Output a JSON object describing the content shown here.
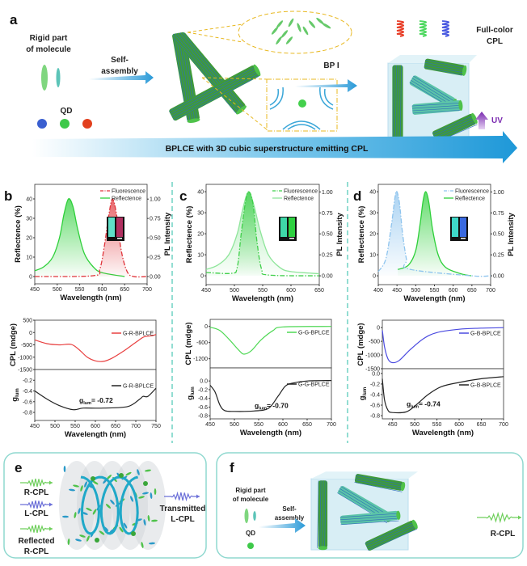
{
  "panel_a": {
    "label": "a",
    "rigid_line1": "Rigid part",
    "rigid_line2": "of molecule",
    "self_line1": "Self-",
    "self_line2": "assembly",
    "qd": "QD",
    "bp": "BP I",
    "fullcolor_line1": "Full-color",
    "fullcolor_line2": "CPL",
    "uv": "UV",
    "banner": "BPLCE  with 3D  cubic superstructure emitting CPL",
    "qd_colors": [
      "#3a5fd0",
      "#3ec94a",
      "#e2401e"
    ],
    "helix_colors": [
      "#e8402a",
      "#4ed860",
      "#4a5ae0"
    ]
  },
  "panel_labels": {
    "b": "b",
    "c": "c",
    "d": "d"
  },
  "panel_e": {
    "label": "e",
    "r_cpl": "R-CPL",
    "l_cpl": "L-CPL",
    "reflected_line1": "Reflected",
    "reflected_line2": "R-CPL",
    "transmitted_line1": "Transmitted",
    "transmitted_line2": "L-CPL"
  },
  "panel_f": {
    "label": "f",
    "rigid_line1": "Rigid part",
    "rigid_line2": "of molecule",
    "self_line1": "Self-",
    "self_line2": "assembly",
    "qd": "QD",
    "r_cpl": "R-CPL"
  },
  "chart_data": [
    {
      "id": "b-spectra",
      "type": "line",
      "xlabel": "Wavelength (nm)",
      "ylabel": "Reflectence (%)",
      "y2label": "PL Intensity",
      "xlim": [
        450,
        700
      ],
      "ylim": [
        -3.75,
        47.5
      ],
      "y2lim": [
        -0.094,
        1.19
      ],
      "xticks": [
        450,
        500,
        550,
        600,
        650,
        700
      ],
      "yticks": [
        0,
        10,
        20,
        30,
        40
      ],
      "y2ticks": [
        "0.00",
        "0.25",
        "0.50",
        "0.75",
        "1.00"
      ],
      "legend": "top-right",
      "series": [
        {
          "name": "Fluorescence",
          "axis": "right",
          "style": "dashdot",
          "color": "#e0343a",
          "points": [
            [
              450,
              0
            ],
            [
              580,
              0.01
            ],
            [
              595,
              0.1
            ],
            [
              605,
              0.4
            ],
            [
              615,
              0.8
            ],
            [
              623,
              1.0
            ],
            [
              632,
              0.8
            ],
            [
              642,
              0.35
            ],
            [
              655,
              0.07
            ],
            [
              670,
              0
            ],
            [
              700,
              0
            ]
          ]
        },
        {
          "name": "Reflectence",
          "axis": "left",
          "style": "solid",
          "color": "#2ed03a",
          "points": [
            [
              450,
              3
            ],
            [
              470,
              5
            ],
            [
              490,
              10
            ],
            [
              505,
              20
            ],
            [
              515,
              32
            ],
            [
              525,
              40
            ],
            [
              535,
              36
            ],
            [
              545,
              25
            ],
            [
              560,
              12
            ],
            [
              580,
              5
            ],
            [
              600,
              2
            ],
            [
              650,
              0
            ]
          ]
        }
      ]
    },
    {
      "id": "b-cpl",
      "type": "line",
      "xlabel": "Wavelength (nm)",
      "ylabel": "CPL (mdge)",
      "y2label": "glum",
      "xlim": [
        450,
        750
      ],
      "xticks": [
        450,
        500,
        550,
        600,
        650,
        700,
        750
      ],
      "top": {
        "ylim": [
          -1500,
          500
        ],
        "yticks": [
          500,
          0,
          -500,
          -1000,
          -1500
        ],
        "series": [
          {
            "name": "G-R-BPLCE",
            "color": "#e84040",
            "points": [
              [
                450,
                -300
              ],
              [
                480,
                -450
              ],
              [
                510,
                -500
              ],
              [
                540,
                -480
              ],
              [
                560,
                -700
              ],
              [
                580,
                -1000
              ],
              [
                600,
                -1150
              ],
              [
                620,
                -1170
              ],
              [
                640,
                -1050
              ],
              [
                670,
                -750
              ],
              [
                700,
                -400
              ],
              [
                720,
                -180
              ],
              [
                740,
                -130
              ],
              [
                750,
                -80
              ]
            ]
          }
        ]
      },
      "bottom": {
        "ylim": [
          -0.95,
          0
        ],
        "yticks": [
          -0.2,
          -0.4,
          -0.6,
          -0.8
        ],
        "annotation": "= -0.72",
        "series": [
          {
            "name": "G-R-BPLCE",
            "color": "#222222",
            "points": [
              [
                450,
                -0.4
              ],
              [
                480,
                -0.55
              ],
              [
                510,
                -0.67
              ],
              [
                545,
                -0.75
              ],
              [
                570,
                -0.72
              ],
              [
                620,
                -0.72
              ],
              [
                680,
                -0.69
              ],
              [
                710,
                -0.55
              ],
              [
                718,
                -0.5
              ],
              [
                730,
                -0.5
              ],
              [
                750,
                -0.35
              ]
            ]
          }
        ]
      }
    },
    {
      "id": "c-spectra",
      "type": "line",
      "xlabel": "Wavelength (nm)",
      "ylabel": "Reflectence (%)",
      "y2label": "PL Intensity",
      "xlim": [
        450,
        650
      ],
      "ylim": [
        -4.2,
        43.5
      ],
      "y2lim": [
        -0.105,
        1.09
      ],
      "xticks": [
        450,
        500,
        550,
        600,
        650
      ],
      "yticks": [
        0,
        10,
        20,
        30,
        40
      ],
      "y2ticks": [
        "0.00",
        "0.25",
        "0.50",
        "0.75",
        "1.00"
      ],
      "legend": "top-right",
      "series": [
        {
          "name": "Fluorescence",
          "axis": "right",
          "style": "dashdot",
          "color": "#3fcf4a",
          "points": [
            [
              450,
              0.04
            ],
            [
              495,
              0.03
            ],
            [
              505,
              0.1
            ],
            [
              512,
              0.5
            ],
            [
              520,
              0.9
            ],
            [
              526,
              1.0
            ],
            [
              533,
              0.85
            ],
            [
              540,
              0.4
            ],
            [
              548,
              0.08
            ],
            [
              560,
              0.01
            ],
            [
              650,
              0
            ]
          ]
        },
        {
          "name": "Reflectence",
          "axis": "left",
          "style": "solid",
          "color": "#8ee59a",
          "points": [
            [
              450,
              3
            ],
            [
              470,
              5
            ],
            [
              490,
              10
            ],
            [
              505,
              20
            ],
            [
              515,
              32
            ],
            [
              525,
              40
            ],
            [
              535,
              33
            ],
            [
              545,
              22
            ],
            [
              560,
              10
            ],
            [
              580,
              4
            ],
            [
              600,
              2
            ],
            [
              650,
              1
            ]
          ]
        }
      ]
    },
    {
      "id": "c-cpl",
      "type": "line",
      "xlabel": "Wavelength (nm)",
      "ylabel": "CPL (mdge)",
      "y2label": "glum",
      "xlim": [
        450,
        700
      ],
      "xticks": [
        450,
        500,
        550,
        600,
        650,
        700
      ],
      "top": {
        "ylim": [
          -1540,
          260
        ],
        "yticks": [
          0,
          -600,
          -1200
        ],
        "series": [
          {
            "name": "G-G-BPLCE",
            "color": "#4ed854",
            "points": [
              [
                450,
                -30
              ],
              [
                470,
                -150
              ],
              [
                490,
                -500
              ],
              [
                510,
                -900
              ],
              [
                520,
                -1030
              ],
              [
                535,
                -900
              ],
              [
                555,
                -500
              ],
              [
                580,
                -150
              ],
              [
                600,
                -20
              ],
              [
                700,
                0
              ]
            ]
          }
        ]
      },
      "bottom": {
        "ylim": [
          -0.87,
          0.3
        ],
        "yticks": [
          0.0,
          -0.2,
          -0.4,
          -0.6,
          -0.8
        ],
        "annotation": "= -0.70",
        "series": [
          {
            "name": "G-G-BPLCE",
            "color": "#222222",
            "points": [
              [
                450,
                -0.1
              ],
              [
                460,
                -0.25
              ],
              [
                470,
                -0.55
              ],
              [
                480,
                -0.68
              ],
              [
                500,
                -0.7
              ],
              [
                540,
                -0.69
              ],
              [
                570,
                -0.63
              ],
              [
                590,
                -0.35
              ],
              [
                605,
                -0.12
              ],
              [
                620,
                -0.05
              ],
              [
                650,
                0
              ],
              [
                700,
                0.01
              ]
            ]
          }
        ]
      }
    },
    {
      "id": "d-spectra",
      "type": "line",
      "xlabel": "Wavelength (nm)",
      "ylabel": "Reflectence (%)",
      "y2label": "PL Intensity",
      "xlim": [
        400,
        700
      ],
      "ylim": [
        -4.2,
        43.5
      ],
      "y2lim": [
        -0.105,
        1.09
      ],
      "xticks": [
        400,
        450,
        500,
        550,
        600,
        650,
        700
      ],
      "yticks": [
        0,
        10,
        20,
        30,
        40
      ],
      "y2ticks": [
        "0.00",
        "0.25",
        "0.50",
        "0.75",
        "1.00"
      ],
      "legend": "top-right",
      "series": [
        {
          "name": "Fluorescence",
          "axis": "right",
          "style": "dashdot",
          "color": "#8ec4ee",
          "points": [
            [
              400,
              0.05
            ],
            [
              420,
              0.2
            ],
            [
              435,
              0.6
            ],
            [
              445,
              0.95
            ],
            [
              450,
              1.0
            ],
            [
              457,
              0.85
            ],
            [
              465,
              0.5
            ],
            [
              475,
              0.2
            ],
            [
              482,
              0.08
            ],
            [
              650,
              0
            ],
            [
              700,
              0
            ]
          ]
        },
        {
          "name": "Reflectence",
          "axis": "left",
          "style": "solid",
          "color": "#2ed03a",
          "points": [
            [
              452,
              3
            ],
            [
              480,
              5
            ],
            [
              500,
              12
            ],
            [
              512,
              25
            ],
            [
              520,
              36
            ],
            [
              527,
              40
            ],
            [
              535,
              35
            ],
            [
              545,
              22
            ],
            [
              560,
              10
            ],
            [
              580,
              4
            ],
            [
              620,
              1
            ],
            [
              648,
              0
            ]
          ]
        }
      ]
    },
    {
      "id": "d-cpl",
      "type": "line",
      "xlabel": "Wavelength (nm)",
      "ylabel": "CPL (mdge)",
      "y2label": "glum",
      "xlim": [
        427,
        700
      ],
      "xticks": [
        450,
        500,
        550,
        600,
        650,
        700
      ],
      "top": {
        "ylim": [
          -1500,
          270
        ],
        "yticks": [
          0,
          -500,
          -1000,
          -1500
        ],
        "series": [
          {
            "name": "G-B-BPLCE",
            "color": "#4a4ae0",
            "points": [
              [
                427,
                -100
              ],
              [
                432,
                -700
              ],
              [
                440,
                -1150
              ],
              [
                450,
                -1280
              ],
              [
                465,
                -1200
              ],
              [
                490,
                -800
              ],
              [
                520,
                -400
              ],
              [
                550,
                -180
              ],
              [
                600,
                -60
              ],
              [
                650,
                -20
              ],
              [
                700,
                0
              ]
            ]
          }
        ]
      },
      "bottom": {
        "ylim": [
          -0.86,
          0.09
        ],
        "yticks": [
          0.0,
          -0.2,
          -0.4,
          -0.6,
          -0.8
        ],
        "annotation": "= -0.74",
        "series": [
          {
            "name": "G-B-BPLCE",
            "color": "#222222",
            "points": [
              [
                427,
                -0.1
              ],
              [
                432,
                -0.5
              ],
              [
                440,
                -0.7
              ],
              [
                450,
                -0.74
              ],
              [
                480,
                -0.73
              ],
              [
                500,
                -0.62
              ],
              [
                530,
                -0.4
              ],
              [
                560,
                -0.25
              ],
              [
                600,
                -0.17
              ],
              [
                650,
                -0.1
              ],
              [
                700,
                -0.06
              ]
            ]
          }
        ]
      }
    }
  ]
}
